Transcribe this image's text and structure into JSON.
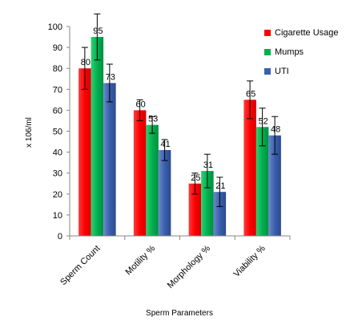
{
  "chart_data": {
    "type": "bar",
    "title": "",
    "xlabel": "Sperm Parameters",
    "ylabel": "x 106/ml",
    "ylim": [
      0,
      100
    ],
    "ytick_step": 10,
    "grid": false,
    "legend_position": "top-right",
    "categories": [
      "Sperm Count",
      "Motility %",
      "Morphology %",
      "Viability %"
    ],
    "series": [
      {
        "name": "Cigarette Usage",
        "color": "#ff0000",
        "values": [
          80,
          60,
          25,
          65
        ],
        "errors": [
          10,
          5,
          5,
          9
        ]
      },
      {
        "name": "Mumps",
        "color": "#00b050",
        "values": [
          95,
          53,
          31,
          52
        ],
        "errors": [
          11,
          4,
          8,
          9
        ]
      },
      {
        "name": "UTI",
        "color": "#3a5fad",
        "values": [
          73,
          41,
          21,
          48
        ],
        "errors": [
          9,
          5,
          7,
          9
        ]
      }
    ]
  }
}
